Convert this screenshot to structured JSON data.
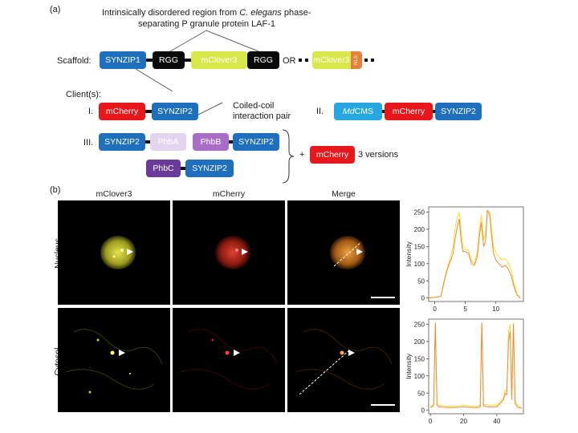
{
  "panel_a": {
    "label": "(a)",
    "description_line1": "Intrinsically disordered region from ",
    "description_italic": "C. elegans",
    "description_line1_end": " phase-",
    "description_line2": "separating P granule protein LAF-1",
    "scaffold_label": "Scaffold:",
    "scaffold": [
      "SYNZIP1",
      "RGG",
      "mClover3",
      "RGG"
    ],
    "or_text": "OR",
    "alt_scaffold": {
      "main": "mClover3",
      "tag": "NLS"
    },
    "clients_label": "Client(s):",
    "client_I": {
      "numeral": "I.",
      "parts": [
        "mCherry",
        "SYNZIP2"
      ]
    },
    "coiled_coil_label_1": "Coiled-coil",
    "coiled_coil_label_2": "interaction pair",
    "client_II": {
      "numeral": "II.",
      "italic": "Md",
      "first": "CMS",
      "parts": [
        "mCherry",
        "SYNZIP2"
      ]
    },
    "client_III": {
      "numeral": "III.",
      "row1": [
        "SYNZIP2",
        "PhbA",
        "PhbB",
        "SYNZIP2"
      ],
      "row2": [
        "PhbC",
        "SYNZIP2"
      ]
    },
    "plus": "+",
    "extra": "mCherry",
    "versions": "3 versions"
  },
  "panel_b": {
    "label": "(b)",
    "columns": [
      "mClover3",
      "mCherry",
      "Merge"
    ],
    "rows": [
      "Nucleus",
      "Cytosol"
    ]
  },
  "colors": {
    "synzip": "#1f6fbf",
    "rgg": "#0a0a0a",
    "mclover": "#d8e84a",
    "nls": "#e8803a",
    "mcherry": "#e8171b",
    "mdcms": "#27a7e0",
    "phba": "#e3d4f0",
    "phbb": "#a86dc7",
    "phbc": "#6a3b9a",
    "trace_yellow": "#f2e030",
    "trace_orange": "#ef8a3a"
  },
  "chart_data": [
    {
      "type": "line",
      "ylabel": "Intensity",
      "xlim": [
        -1,
        14.5
      ],
      "ylim": [
        -10,
        265
      ],
      "xticks": [
        0,
        5,
        10
      ],
      "yticks": [
        0,
        50,
        100,
        150,
        200,
        250
      ],
      "series": [
        {
          "x": [
            -1,
            0,
            1,
            1.5,
            2,
            2.5,
            3,
            3.3,
            3.6,
            4,
            4.3,
            4.6,
            5,
            5.5,
            6,
            6.5,
            7,
            7.3,
            7.6,
            8,
            8.3,
            8.6,
            9,
            9.3,
            9.6,
            10,
            10.5,
            11,
            11.5,
            12,
            12.5,
            13,
            13.5,
            14
          ],
          "y": [
            0,
            2,
            5,
            50,
            85,
            115,
            150,
            200,
            230,
            250,
            200,
            150,
            140,
            140,
            110,
            100,
            140,
            200,
            240,
            170,
            185,
            255,
            250,
            200,
            150,
            130,
            120,
            110,
            115,
            105,
            80,
            40,
            10,
            0
          ]
        },
        {
          "x": [
            -1,
            0,
            1,
            1.5,
            2,
            2.5,
            3,
            3.3,
            3.6,
            4,
            4.3,
            4.6,
            5,
            5.5,
            6,
            6.5,
            7,
            7.3,
            7.6,
            8,
            8.3,
            8.6,
            9,
            9.3,
            9.6,
            10,
            10.5,
            11,
            11.5,
            12,
            12.5,
            13,
            13.5,
            14
          ],
          "y": [
            0,
            2,
            5,
            45,
            80,
            105,
            130,
            170,
            200,
            230,
            170,
            135,
            135,
            130,
            100,
            95,
            125,
            180,
            220,
            150,
            165,
            255,
            240,
            180,
            130,
            110,
            100,
            90,
            95,
            85,
            65,
            30,
            8,
            0
          ]
        }
      ]
    },
    {
      "type": "line",
      "ylabel": "Intensity",
      "xlim": [
        -1,
        56
      ],
      "ylim": [
        -10,
        265
      ],
      "xticks": [
        0,
        20,
        40
      ],
      "yticks": [
        0,
        50,
        100,
        150,
        200,
        250
      ],
      "series": [
        {
          "x": [
            0,
            1,
            2,
            3,
            4,
            5,
            10,
            15,
            20,
            25,
            29,
            30,
            31,
            32,
            35,
            40,
            42,
            44,
            45,
            46,
            47,
            48,
            49,
            50,
            51,
            52,
            53,
            55
          ],
          "y": [
            10,
            12,
            20,
            250,
            20,
            15,
            12,
            12,
            15,
            12,
            12,
            15,
            250,
            18,
            15,
            15,
            25,
            35,
            60,
            55,
            230,
            250,
            40,
            255,
            30,
            18,
            12,
            10
          ]
        },
        {
          "x": [
            0,
            1,
            2,
            3,
            4,
            5,
            10,
            15,
            20,
            25,
            29,
            30,
            31,
            32,
            35,
            40,
            42,
            44,
            45,
            46,
            47,
            48,
            49,
            50,
            51,
            52,
            53,
            55
          ],
          "y": [
            8,
            10,
            15,
            255,
            15,
            10,
            8,
            8,
            10,
            8,
            8,
            10,
            255,
            12,
            10,
            10,
            20,
            30,
            50,
            45,
            200,
            230,
            30,
            250,
            20,
            12,
            8,
            6
          ]
        }
      ]
    }
  ]
}
